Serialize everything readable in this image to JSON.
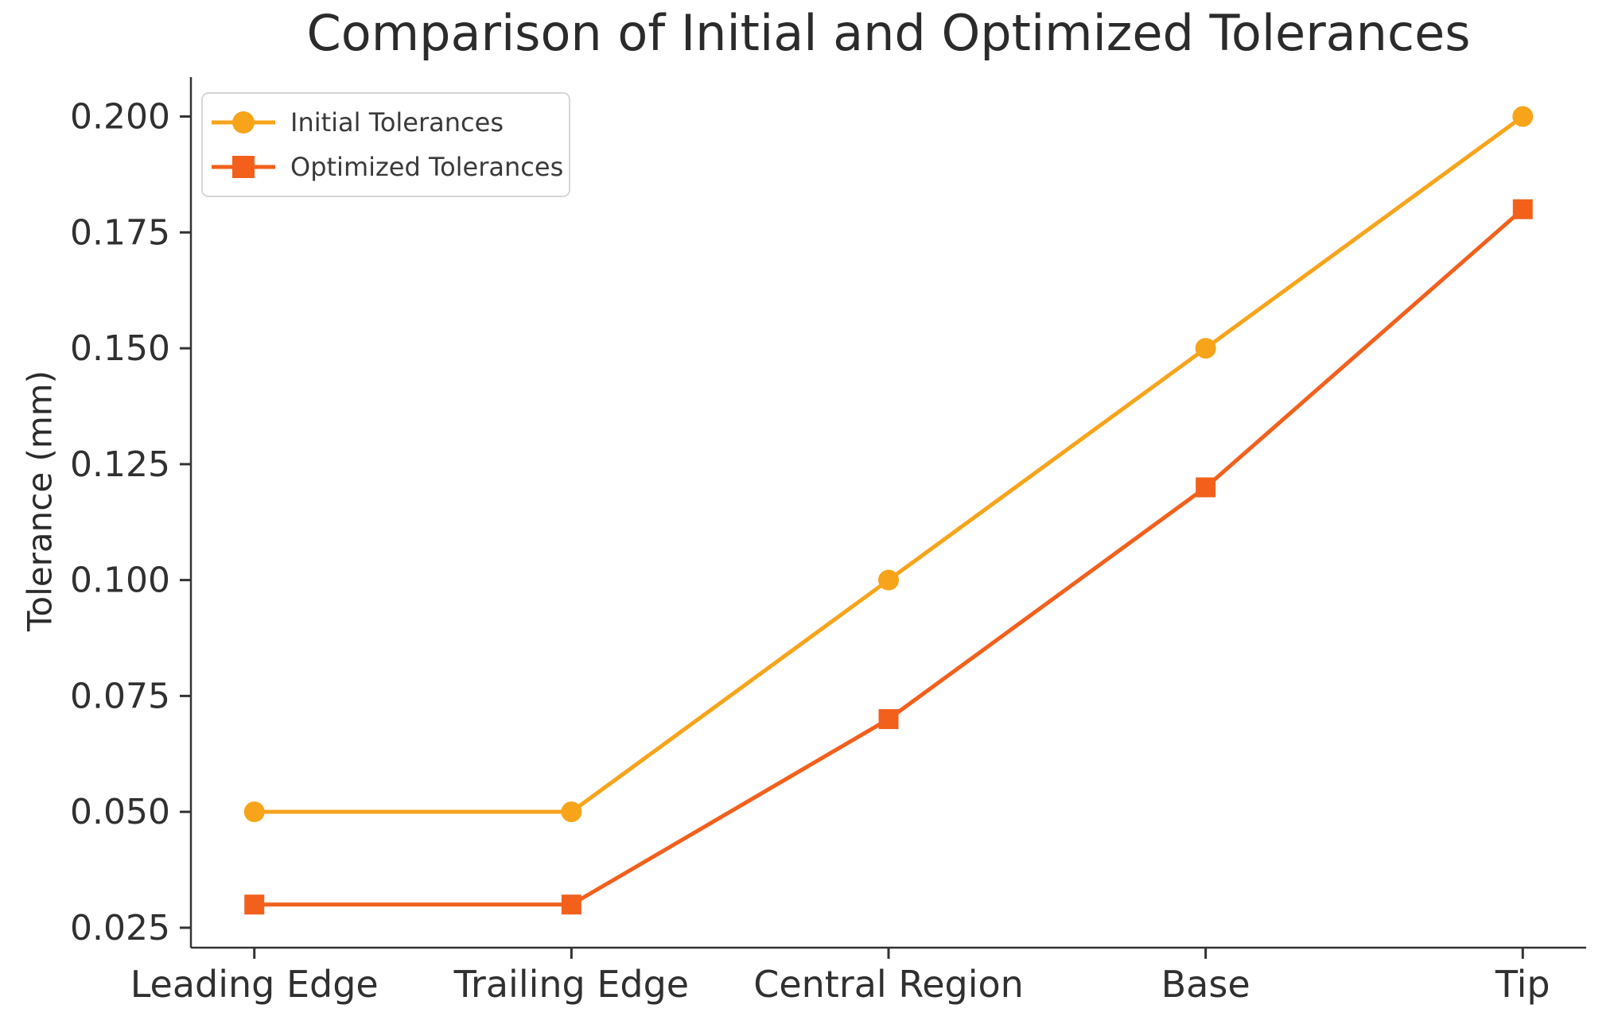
{
  "figure": {
    "title": "Comparison of Initial and Optimized Tolerances"
  },
  "chart_data": {
    "type": "line",
    "title": "Comparison of Initial and Optimized Tolerances",
    "categories": [
      "Leading Edge",
      "Trailing Edge",
      "Central Region",
      "Base",
      "Tip"
    ],
    "series": [
      {
        "name": "Initial Tolerances",
        "marker": "circle",
        "color": "#F7A41B",
        "values": [
          0.05,
          0.05,
          0.1,
          0.15,
          0.2
        ]
      },
      {
        "name": "Optimized Tolerances",
        "marker": "square",
        "color": "#F2601C",
        "values": [
          0.03,
          0.03,
          0.07,
          0.12,
          0.18
        ]
      }
    ],
    "xlabel": "",
    "ylabel": "Tolerance (mm)",
    "ylim": [
      0.0207,
      0.2085
    ],
    "yticks": [
      0.025,
      0.05,
      0.075,
      0.1,
      0.125,
      0.15,
      0.175,
      0.2
    ],
    "ytick_labels": [
      "0.025",
      "0.050",
      "0.075",
      "0.100",
      "0.125",
      "0.150",
      "0.175",
      "0.200"
    ],
    "grid": false,
    "legend": {
      "position": "upper left",
      "entries": [
        "Initial Tolerances",
        "Optimized Tolerances"
      ]
    }
  },
  "colors": {
    "background": "#ffffff",
    "text": "#2b2b2b",
    "axis": "#333333",
    "legend_border": "#d6d6d6"
  }
}
